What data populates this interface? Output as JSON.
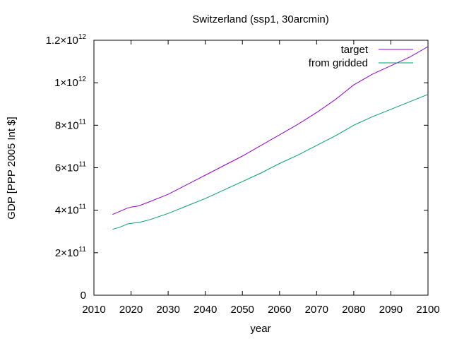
{
  "chart_data": {
    "type": "line",
    "title": "Switzerland (ssp1, 30arcmin)",
    "xlabel": "year",
    "ylabel": "GDP [PPP 2005 Int $]",
    "xlim": [
      2010,
      2100
    ],
    "ylim": [
      0,
      1200000000000.0
    ],
    "x_ticks": [
      2010,
      2020,
      2030,
      2040,
      2050,
      2060,
      2070,
      2080,
      2090,
      2100
    ],
    "y_ticks": [
      {
        "value": 0,
        "mantissa": "0",
        "exponent": ""
      },
      {
        "value": 200000000000.0,
        "mantissa": "2×10",
        "exponent": "11"
      },
      {
        "value": 400000000000.0,
        "mantissa": "4×10",
        "exponent": "11"
      },
      {
        "value": 600000000000.0,
        "mantissa": "6×10",
        "exponent": "11"
      },
      {
        "value": 800000000000.0,
        "mantissa": "8×10",
        "exponent": "11"
      },
      {
        "value": 1000000000000.0,
        "mantissa": "1×10",
        "exponent": "12"
      },
      {
        "value": 1200000000000.0,
        "mantissa": "1.2×10",
        "exponent": "12"
      }
    ],
    "legend_position": "top-right",
    "grid": false,
    "series": [
      {
        "name": "target",
        "color": "#9400d3",
        "x": [
          2015,
          2017,
          2019,
          2020,
          2022,
          2025,
          2030,
          2035,
          2040,
          2045,
          2050,
          2055,
          2060,
          2065,
          2070,
          2075,
          2080,
          2085,
          2090,
          2095,
          2100
        ],
        "y": [
          380000000000.0,
          395000000000.0,
          410000000000.0,
          415000000000.0,
          420000000000.0,
          440000000000.0,
          475000000000.0,
          520000000000.0,
          565000000000.0,
          610000000000.0,
          655000000000.0,
          705000000000.0,
          755000000000.0,
          805000000000.0,
          860000000000.0,
          920000000000.0,
          990000000000.0,
          1040000000000.0,
          1080000000000.0,
          1120000000000.0,
          1170000000000.0
        ]
      },
      {
        "name": "from gridded",
        "color": "#009e73",
        "x": [
          2015,
          2017,
          2019,
          2020,
          2022,
          2025,
          2030,
          2035,
          2040,
          2045,
          2050,
          2055,
          2060,
          2065,
          2070,
          2075,
          2080,
          2085,
          2090,
          2095,
          2100
        ],
        "y": [
          310000000000.0,
          320000000000.0,
          335000000000.0,
          338000000000.0,
          342000000000.0,
          355000000000.0,
          385000000000.0,
          420000000000.0,
          455000000000.0,
          495000000000.0,
          535000000000.0,
          575000000000.0,
          620000000000.0,
          660000000000.0,
          705000000000.0,
          750000000000.0,
          800000000000.0,
          840000000000.0,
          875000000000.0,
          910000000000.0,
          945000000000.0
        ]
      }
    ]
  }
}
